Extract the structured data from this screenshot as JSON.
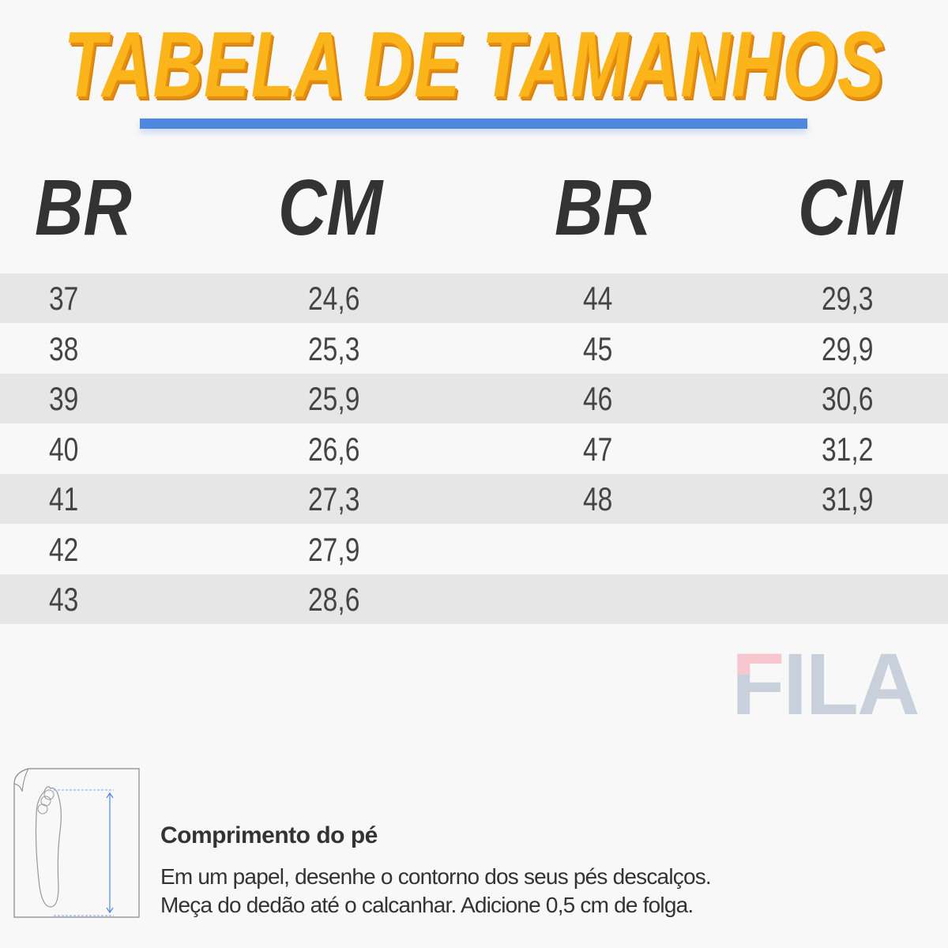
{
  "title": "TABELA DE TAMANHOS",
  "colors": {
    "title": "#fbb41a",
    "underline": "#4f86de",
    "stripe": "#e6e6e6"
  },
  "headers": [
    "BR",
    "CM",
    "BR",
    "CM"
  ],
  "rows": [
    {
      "br1": "37",
      "cm1": "24,6",
      "br2": "44",
      "cm2": "29,3"
    },
    {
      "br1": "38",
      "cm1": "25,3",
      "br2": "45",
      "cm2": "29,9"
    },
    {
      "br1": "39",
      "cm1": "25,9",
      "br2": "46",
      "cm2": "30,6"
    },
    {
      "br1": "40",
      "cm1": "26,6",
      "br2": "47",
      "cm2": "31,2"
    },
    {
      "br1": "41",
      "cm1": "27,3",
      "br2": "48",
      "cm2": "31,9"
    },
    {
      "br1": "42",
      "cm1": "27,9",
      "br2": "",
      "cm2": ""
    },
    {
      "br1": "43",
      "cm1": "28,6",
      "br2": "",
      "cm2": ""
    }
  ],
  "brand": "FILA",
  "info": {
    "icon": "foot-measure-icon",
    "title": "Comprimento do pé",
    "line1": "Em um papel, desenhe o contorno dos seus pés descalços.",
    "line2": "Meça do dedão até o calcanhar. Adicione 0,5 cm de folga."
  }
}
